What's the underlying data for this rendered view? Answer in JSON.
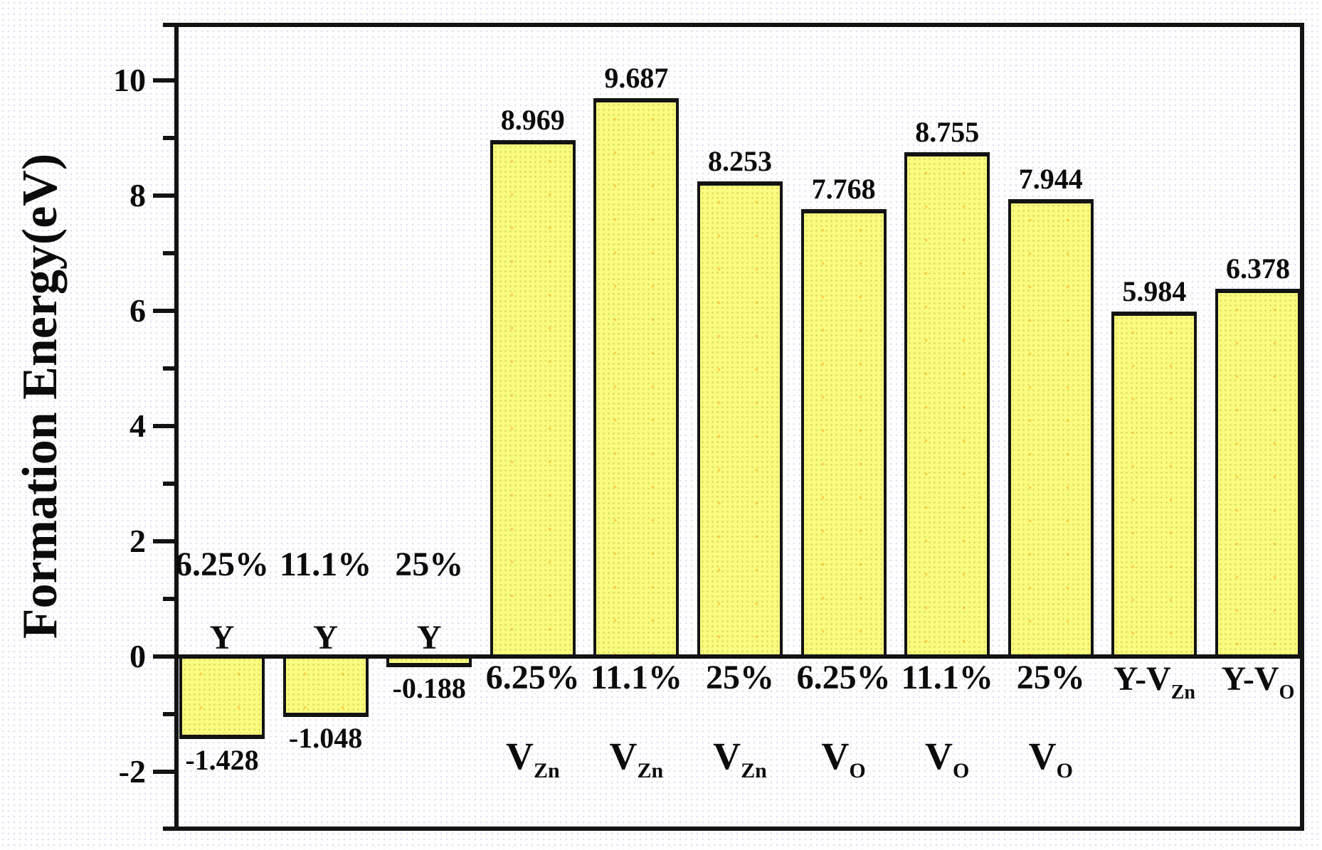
{
  "chart_data": {
    "type": "bar",
    "title": "",
    "xlabel": "",
    "ylabel": "Formation Energy(eV)",
    "ylim": [
      -3,
      11
    ],
    "yticks_major": [
      10,
      8,
      6,
      4,
      2,
      0,
      -2
    ],
    "yticks_minor": [
      11,
      9,
      7,
      5,
      3,
      1,
      -1,
      -3
    ],
    "grid": false,
    "legend": null,
    "bars": [
      {
        "species": "Y",
        "species_sub": "",
        "concentration": "6.25%",
        "value": -1.428,
        "value_label": "-1.428"
      },
      {
        "species": "Y",
        "species_sub": "",
        "concentration": "11.1%",
        "value": -1.048,
        "value_label": "-1.048"
      },
      {
        "species": "Y",
        "species_sub": "",
        "concentration": "25%",
        "value": -0.188,
        "value_label": "-0.188"
      },
      {
        "species": "V",
        "species_sub": "Zn",
        "concentration": "6.25%",
        "value": 8.969,
        "value_label": "8.969"
      },
      {
        "species": "V",
        "species_sub": "Zn",
        "concentration": "11.1%",
        "value": 9.687,
        "value_label": "9.687"
      },
      {
        "species": "V",
        "species_sub": "Zn",
        "concentration": "25%",
        "value": 8.253,
        "value_label": "8.253"
      },
      {
        "species": "V",
        "species_sub": "O",
        "concentration": "6.25%",
        "value": 7.768,
        "value_label": "7.768"
      },
      {
        "species": "V",
        "species_sub": "O",
        "concentration": "11.1%",
        "value": 8.755,
        "value_label": "8.755"
      },
      {
        "species": "V",
        "species_sub": "O",
        "concentration": "25%",
        "value": 7.944,
        "value_label": "7.944"
      },
      {
        "species": "Y-V",
        "species_sub": "Zn",
        "concentration": "",
        "value": 5.984,
        "value_label": "5.984"
      },
      {
        "species": "Y-V",
        "species_sub": "O",
        "concentration": "",
        "value": 6.378,
        "value_label": "6.378"
      }
    ]
  },
  "colors": {
    "background": "#ffffff",
    "bar_fill": "#fafc80",
    "bar_border": "#131313",
    "axis": "#131313",
    "text": "#0b0b0b"
  }
}
